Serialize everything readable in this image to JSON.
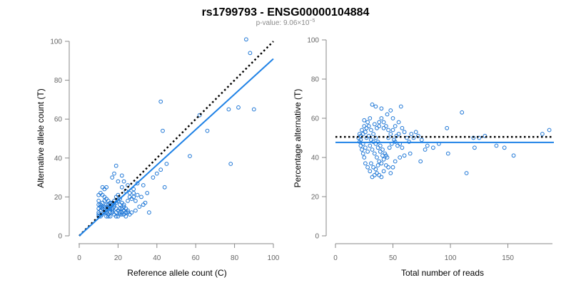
{
  "header": {
    "title": "rs1799793 - ENSG00000104884",
    "subtitle_prefix": "p-value: 9.06×10",
    "subtitle_exp": "−5"
  },
  "colors": {
    "points": "#1f77d6",
    "fit_line": "#1f82e6",
    "reference_line": "#000000"
  },
  "chart_data": [
    {
      "type": "scatter",
      "xlabel": "Reference allele count (C)",
      "ylabel": "Alternative allele count (T)",
      "xlim": [
        0,
        100
      ],
      "ylim": [
        0,
        100
      ],
      "xticks": [
        0,
        20,
        40,
        60,
        80,
        100
      ],
      "yticks": [
        0,
        20,
        40,
        60,
        80,
        100
      ],
      "grid": false,
      "reference_line": {
        "style": "dotted",
        "points": [
          [
            0,
            0
          ],
          [
            100,
            100
          ]
        ]
      },
      "fit_line": {
        "style": "solid",
        "points": [
          [
            0,
            0
          ],
          [
            100,
            91
          ]
        ]
      },
      "points": [
        [
          86,
          101
        ],
        [
          88,
          94
        ],
        [
          42,
          69
        ],
        [
          62,
          62
        ],
        [
          43,
          54
        ],
        [
          66,
          54
        ],
        [
          77,
          65
        ],
        [
          82,
          66
        ],
        [
          90,
          65
        ],
        [
          78,
          37
        ],
        [
          57,
          41
        ],
        [
          45,
          37
        ],
        [
          42,
          34
        ],
        [
          40,
          32
        ],
        [
          38,
          30
        ],
        [
          44,
          25
        ],
        [
          33,
          26
        ],
        [
          35,
          22
        ],
        [
          32,
          20
        ],
        [
          30,
          21
        ],
        [
          34,
          17
        ],
        [
          33,
          16
        ],
        [
          31,
          15
        ],
        [
          36,
          12
        ],
        [
          27,
          12
        ],
        [
          25,
          13
        ],
        [
          19,
          36
        ],
        [
          17,
          30
        ],
        [
          18,
          32
        ],
        [
          22,
          31
        ],
        [
          23,
          28
        ],
        [
          25,
          26
        ],
        [
          20,
          28
        ],
        [
          22,
          25
        ],
        [
          24,
          23
        ],
        [
          26,
          22
        ],
        [
          28,
          22
        ],
        [
          30,
          27
        ],
        [
          28,
          24
        ],
        [
          27,
          19
        ],
        [
          29,
          18
        ],
        [
          21,
          19
        ],
        [
          22,
          17
        ],
        [
          23,
          15
        ],
        [
          24,
          14
        ],
        [
          25,
          12
        ],
        [
          26,
          11
        ],
        [
          24,
          10
        ],
        [
          22,
          11
        ],
        [
          21,
          12
        ],
        [
          20,
          13
        ],
        [
          19,
          14
        ],
        [
          18,
          15
        ],
        [
          17,
          16
        ],
        [
          16,
          17
        ],
        [
          15,
          18
        ],
        [
          14,
          19
        ],
        [
          13,
          20
        ],
        [
          12,
          21
        ],
        [
          11,
          22
        ],
        [
          13,
          24
        ],
        [
          14,
          25
        ],
        [
          12,
          25
        ],
        [
          10,
          21
        ],
        [
          10,
          18
        ],
        [
          10,
          16
        ],
        [
          10,
          14
        ],
        [
          10,
          12
        ],
        [
          10,
          11
        ],
        [
          10,
          10
        ],
        [
          11,
          10
        ],
        [
          12,
          11
        ],
        [
          13,
          12
        ],
        [
          14,
          13
        ],
        [
          15,
          14
        ],
        [
          16,
          15
        ],
        [
          17,
          12
        ],
        [
          18,
          11
        ],
        [
          19,
          10
        ],
        [
          20,
          10
        ],
        [
          21,
          11
        ],
        [
          22,
          12
        ],
        [
          23,
          13
        ],
        [
          11,
          13
        ],
        [
          12,
          14
        ],
        [
          13,
          15
        ],
        [
          14,
          16
        ],
        [
          15,
          15
        ],
        [
          16,
          14
        ],
        [
          17,
          13
        ],
        [
          18,
          16
        ],
        [
          19,
          17
        ],
        [
          20,
          18
        ],
        [
          21,
          16
        ],
        [
          22,
          14
        ],
        [
          23,
          11
        ],
        [
          24,
          12
        ],
        [
          14,
          12
        ],
        [
          15,
          11
        ],
        [
          16,
          10
        ],
        [
          17,
          17
        ],
        [
          18,
          18
        ],
        [
          19,
          20
        ],
        [
          20,
          21
        ],
        [
          11,
          16
        ],
        [
          12,
          17
        ],
        [
          13,
          18
        ],
        [
          14,
          10
        ],
        [
          15,
          10
        ],
        [
          16,
          12
        ],
        [
          11,
          15
        ],
        [
          12,
          15
        ],
        [
          13,
          14
        ],
        [
          15,
          16
        ],
        [
          17,
          14
        ],
        [
          19,
          12
        ],
        [
          21,
          14
        ],
        [
          23,
          16
        ],
        [
          25,
          18
        ],
        [
          26,
          20
        ],
        [
          28,
          20
        ],
        [
          29,
          13
        ]
      ]
    },
    {
      "type": "scatter",
      "xlabel": "Total number of reads",
      "ylabel": "Percentage alternative (T)",
      "xlim": [
        0,
        190
      ],
      "ylim": [
        0,
        100
      ],
      "xticks": [
        0,
        50,
        100,
        150
      ],
      "yticks": [
        0,
        20,
        40,
        60,
        80,
        100
      ],
      "grid": false,
      "reference_line": {
        "style": "dotted",
        "points": [
          [
            0,
            50.5
          ],
          [
            190,
            50.5
          ]
        ]
      },
      "fit_line": {
        "style": "solid",
        "points": [
          [
            0,
            47.7
          ],
          [
            190,
            47.7
          ]
        ]
      },
      "points": [
        [
          32,
          67
        ],
        [
          35,
          66
        ],
        [
          40,
          65
        ],
        [
          48,
          64
        ],
        [
          57,
          66
        ],
        [
          45,
          62
        ],
        [
          30,
          60
        ],
        [
          25,
          59
        ],
        [
          28,
          58
        ],
        [
          34,
          57
        ],
        [
          38,
          56
        ],
        [
          42,
          55
        ],
        [
          46,
          54
        ],
        [
          50,
          60
        ],
        [
          55,
          58
        ],
        [
          52,
          56
        ],
        [
          58,
          55
        ],
        [
          60,
          53
        ],
        [
          62,
          50
        ],
        [
          64,
          48
        ],
        [
          66,
          52
        ],
        [
          68,
          50
        ],
        [
          70,
          53
        ],
        [
          72,
          51
        ],
        [
          75,
          49
        ],
        [
          80,
          46
        ],
        [
          85,
          45
        ],
        [
          90,
          47
        ],
        [
          97,
          55
        ],
        [
          110,
          63
        ],
        [
          120,
          50
        ],
        [
          125,
          50
        ],
        [
          130,
          51
        ],
        [
          140,
          46
        ],
        [
          147,
          45
        ],
        [
          155,
          41
        ],
        [
          180,
          52
        ],
        [
          186,
          54
        ],
        [
          98,
          42
        ],
        [
          114,
          32
        ],
        [
          121,
          45
        ],
        [
          78,
          44
        ],
        [
          74,
          38
        ],
        [
          65,
          42
        ],
        [
          60,
          41
        ],
        [
          56,
          40
        ],
        [
          52,
          38
        ],
        [
          50,
          35
        ],
        [
          48,
          32
        ],
        [
          46,
          35
        ],
        [
          44,
          36
        ],
        [
          42,
          33
        ],
        [
          40,
          30
        ],
        [
          38,
          31
        ],
        [
          36,
          32
        ],
        [
          34,
          31
        ],
        [
          32,
          30
        ],
        [
          30,
          33
        ],
        [
          28,
          35
        ],
        [
          26,
          37
        ],
        [
          25,
          40
        ],
        [
          24,
          42
        ],
        [
          23,
          44
        ],
        [
          22,
          46
        ],
        [
          21,
          48
        ],
        [
          20,
          50
        ],
        [
          22,
          51
        ],
        [
          24,
          52
        ],
        [
          26,
          53
        ],
        [
          27,
          55
        ],
        [
          29,
          56
        ],
        [
          31,
          54
        ],
        [
          33,
          52
        ],
        [
          35,
          50
        ],
        [
          37,
          48
        ],
        [
          39,
          46
        ],
        [
          41,
          44
        ],
        [
          43,
          42
        ],
        [
          45,
          40
        ],
        [
          47,
          45
        ],
        [
          49,
          47
        ],
        [
          51,
          49
        ],
        [
          53,
          51
        ],
        [
          55,
          52
        ],
        [
          36,
          55
        ],
        [
          38,
          58
        ],
        [
          40,
          60
        ],
        [
          42,
          58
        ],
        [
          44,
          56
        ],
        [
          30,
          46
        ],
        [
          32,
          44
        ],
        [
          34,
          42
        ],
        [
          36,
          40
        ],
        [
          38,
          38
        ],
        [
          40,
          37
        ],
        [
          42,
          39
        ],
        [
          44,
          41
        ],
        [
          28,
          43
        ],
        [
          26,
          45
        ],
        [
          24,
          47
        ],
        [
          22,
          49
        ],
        [
          35,
          47
        ],
        [
          37,
          45
        ],
        [
          39,
          43
        ],
        [
          41,
          41
        ],
        [
          27,
          50
        ],
        [
          29,
          51
        ],
        [
          31,
          49
        ],
        [
          33,
          48
        ],
        [
          46,
          50
        ],
        [
          48,
          52
        ],
        [
          50,
          54
        ],
        [
          52,
          48
        ],
        [
          54,
          46
        ],
        [
          56,
          47
        ],
        [
          58,
          45
        ],
        [
          25,
          56
        ],
        [
          23,
          54
        ],
        [
          21,
          52
        ],
        [
          31,
          37
        ],
        [
          33,
          35
        ],
        [
          35,
          34
        ],
        [
          37,
          36
        ]
      ]
    }
  ]
}
